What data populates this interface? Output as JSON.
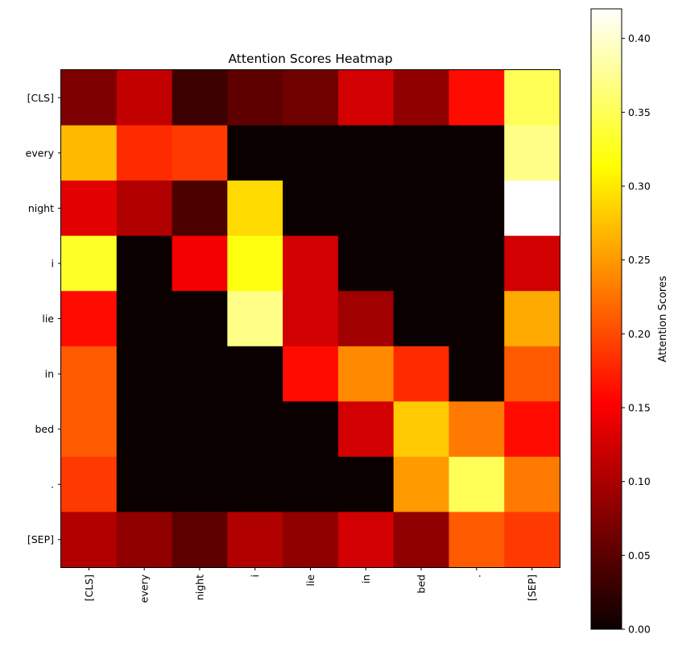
{
  "chart_data": {
    "type": "heatmap",
    "title": "Attention Scores Heatmap",
    "xlabel": "",
    "ylabel": "",
    "x_categories": [
      "[CLS]",
      "every",
      "night",
      "i",
      "lie",
      "in",
      "bed",
      ".",
      "[SEP]"
    ],
    "y_categories": [
      "[CLS]",
      "every",
      "night",
      "i",
      "lie",
      "in",
      "bed",
      ".",
      "[SEP]"
    ],
    "values": [
      [
        0.07,
        0.11,
        0.03,
        0.05,
        0.06,
        0.12,
        0.08,
        0.16,
        0.35
      ],
      [
        0.27,
        0.18,
        0.19,
        0.0,
        0.0,
        0.0,
        0.0,
        0.0,
        0.37
      ],
      [
        0.13,
        0.1,
        0.04,
        0.29,
        0.0,
        0.0,
        0.0,
        0.0,
        0.42
      ],
      [
        0.33,
        0.0,
        0.14,
        0.32,
        0.12,
        0.0,
        0.0,
        0.0,
        0.12
      ],
      [
        0.16,
        0.0,
        0.0,
        0.37,
        0.12,
        0.09,
        0.0,
        0.0,
        0.26
      ],
      [
        0.21,
        0.0,
        0.0,
        0.0,
        0.16,
        0.24,
        0.18,
        0.0,
        0.21
      ],
      [
        0.21,
        0.0,
        0.0,
        0.0,
        0.0,
        0.12,
        0.28,
        0.23,
        0.16
      ],
      [
        0.19,
        0.0,
        0.0,
        0.0,
        0.0,
        0.0,
        0.25,
        0.35,
        0.23
      ],
      [
        0.1,
        0.08,
        0.05,
        0.1,
        0.08,
        0.12,
        0.08,
        0.21,
        0.19
      ]
    ],
    "colormap": "hot",
    "vmin": 0.0,
    "vmax": 0.42,
    "colorbar": {
      "label": "Attention Scores",
      "ticks": [
        0.0,
        0.05,
        0.1,
        0.15,
        0.2,
        0.25,
        0.3,
        0.35,
        0.4
      ],
      "tick_labels": [
        "0.00",
        "0.05",
        "0.10",
        "0.15",
        "0.20",
        "0.25",
        "0.30",
        "0.35",
        "0.40"
      ]
    },
    "grid": false,
    "x_tick_rotation": "vertical"
  }
}
